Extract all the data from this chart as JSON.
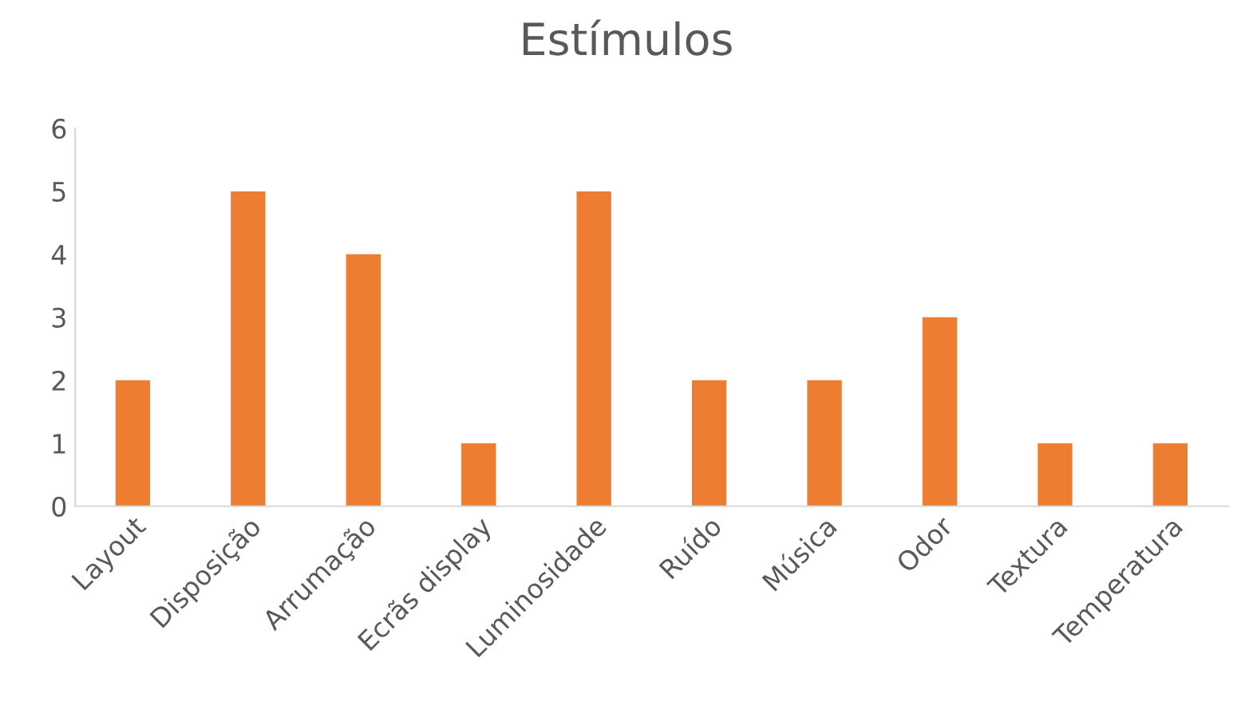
{
  "chart_data": {
    "type": "bar",
    "title": "Estímulos",
    "categories": [
      "Layout",
      "Disposição",
      "Arrumação",
      "Ecrãs display",
      "Luminosidade",
      "Ruído",
      "Música",
      "Odor",
      "Textura",
      "Temperatura"
    ],
    "values": [
      2,
      5,
      4,
      1,
      5,
      2,
      2,
      3,
      1,
      1
    ],
    "color": "#ed7d31",
    "ylim": [
      0,
      6
    ],
    "yticks": [
      0,
      1,
      2,
      3,
      4,
      5,
      6
    ],
    "grid": false
  }
}
